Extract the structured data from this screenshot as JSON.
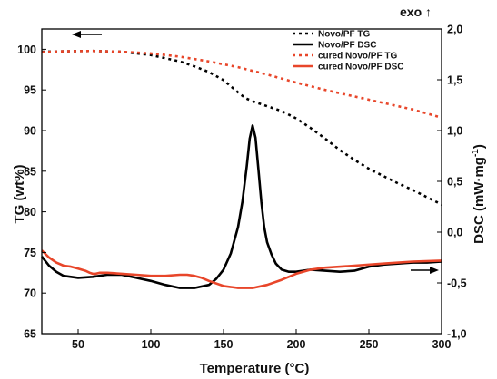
{
  "chart_data": {
    "type": "line",
    "xlabel": "Temperature (°C)",
    "ylabel_left": "TG (wt%)",
    "ylabel_right": "DSC (mW·mg",
    "ylabel_right_sup": "-1",
    "ylabel_right_close": ")",
    "exo_label": "exo ↑",
    "xlim": [
      25,
      300
    ],
    "ylim_left": [
      65,
      102.5
    ],
    "ylim_right": [
      -1.0,
      2.0
    ],
    "x_ticks": [
      50,
      100,
      150,
      200,
      250,
      300
    ],
    "y_left_ticks": [
      65,
      70,
      75,
      80,
      85,
      90,
      95,
      100
    ],
    "y_right_ticks": [
      -1.0,
      -0.5,
      0.0,
      0.5,
      1.0,
      1.5,
      2.0
    ],
    "x_tick_labels": [
      "50",
      "100",
      "150",
      "200",
      "250",
      "300"
    ],
    "y_left_tick_labels": [
      "65",
      "70",
      "75",
      "80",
      "85",
      "90",
      "95",
      "100"
    ],
    "y_right_tick_labels": [
      "-1,0",
      "-0,5",
      "0,0",
      "0,5",
      "1,0",
      "1,5",
      "2,0"
    ],
    "legend_position": "top-right",
    "colors": {
      "black": "#000000",
      "red": "#e8462a"
    },
    "series": [
      {
        "name": "Novo/PF TG",
        "axis": "left",
        "style": "dotted",
        "color": "#000000",
        "x": [
          25,
          40,
          60,
          80,
          100,
          110,
          120,
          130,
          140,
          150,
          160,
          165,
          170,
          175,
          180,
          190,
          200,
          210,
          220,
          230,
          240,
          250,
          260,
          270,
          280,
          290,
          300
        ],
        "y": [
          99.7,
          99.75,
          99.8,
          99.7,
          99.3,
          98.9,
          98.5,
          97.9,
          97.2,
          96.2,
          94.7,
          94.0,
          93.6,
          93.3,
          93.0,
          92.4,
          91.5,
          90.3,
          89.0,
          87.6,
          86.4,
          85.3,
          84.4,
          83.5,
          82.7,
          81.8,
          80.9
        ]
      },
      {
        "name": "Novo/PF DSC",
        "axis": "right",
        "style": "solid",
        "color": "#000000",
        "x": [
          25,
          30,
          35,
          40,
          50,
          60,
          70,
          80,
          90,
          100,
          110,
          120,
          130,
          140,
          145,
          150,
          155,
          160,
          163,
          166,
          168,
          170,
          172,
          174,
          176,
          178,
          180,
          183,
          186,
          190,
          195,
          200,
          210,
          220,
          230,
          240,
          250,
          260,
          270,
          280,
          290,
          300
        ],
        "y": [
          -0.24,
          -0.33,
          -0.39,
          -0.43,
          -0.45,
          -0.44,
          -0.42,
          -0.42,
          -0.45,
          -0.48,
          -0.52,
          -0.55,
          -0.55,
          -0.52,
          -0.46,
          -0.37,
          -0.21,
          0.05,
          0.3,
          0.65,
          0.92,
          1.05,
          0.93,
          0.62,
          0.3,
          0.05,
          -0.1,
          -0.22,
          -0.31,
          -0.37,
          -0.39,
          -0.39,
          -0.37,
          -0.38,
          -0.39,
          -0.38,
          -0.34,
          -0.32,
          -0.31,
          -0.3,
          -0.3,
          -0.29
        ]
      },
      {
        "name": "cured Novo/PF TG",
        "axis": "left",
        "style": "dotted",
        "color": "#e8462a",
        "x": [
          25,
          40,
          60,
          80,
          100,
          120,
          140,
          160,
          180,
          200,
          220,
          240,
          260,
          280,
          300
        ],
        "y": [
          99.65,
          99.75,
          99.8,
          99.7,
          99.5,
          99.1,
          98.5,
          97.8,
          96.9,
          95.9,
          95.0,
          94.2,
          93.4,
          92.6,
          91.6
        ]
      },
      {
        "name": "cured Novo/PF DSC",
        "axis": "right",
        "style": "solid",
        "color": "#e8462a",
        "x": [
          25,
          30,
          35,
          40,
          45,
          50,
          55,
          58,
          60,
          62,
          65,
          70,
          80,
          90,
          100,
          110,
          120,
          125,
          130,
          135,
          140,
          150,
          160,
          170,
          180,
          190,
          200,
          210,
          220,
          240,
          260,
          280,
          300
        ],
        "y": [
          -0.18,
          -0.25,
          -0.3,
          -0.33,
          -0.34,
          -0.36,
          -0.38,
          -0.4,
          -0.41,
          -0.41,
          -0.4,
          -0.4,
          -0.41,
          -0.42,
          -0.43,
          -0.43,
          -0.42,
          -0.42,
          -0.43,
          -0.45,
          -0.48,
          -0.53,
          -0.55,
          -0.55,
          -0.52,
          -0.47,
          -0.41,
          -0.37,
          -0.35,
          -0.33,
          -0.31,
          -0.29,
          -0.28
        ]
      }
    ]
  }
}
